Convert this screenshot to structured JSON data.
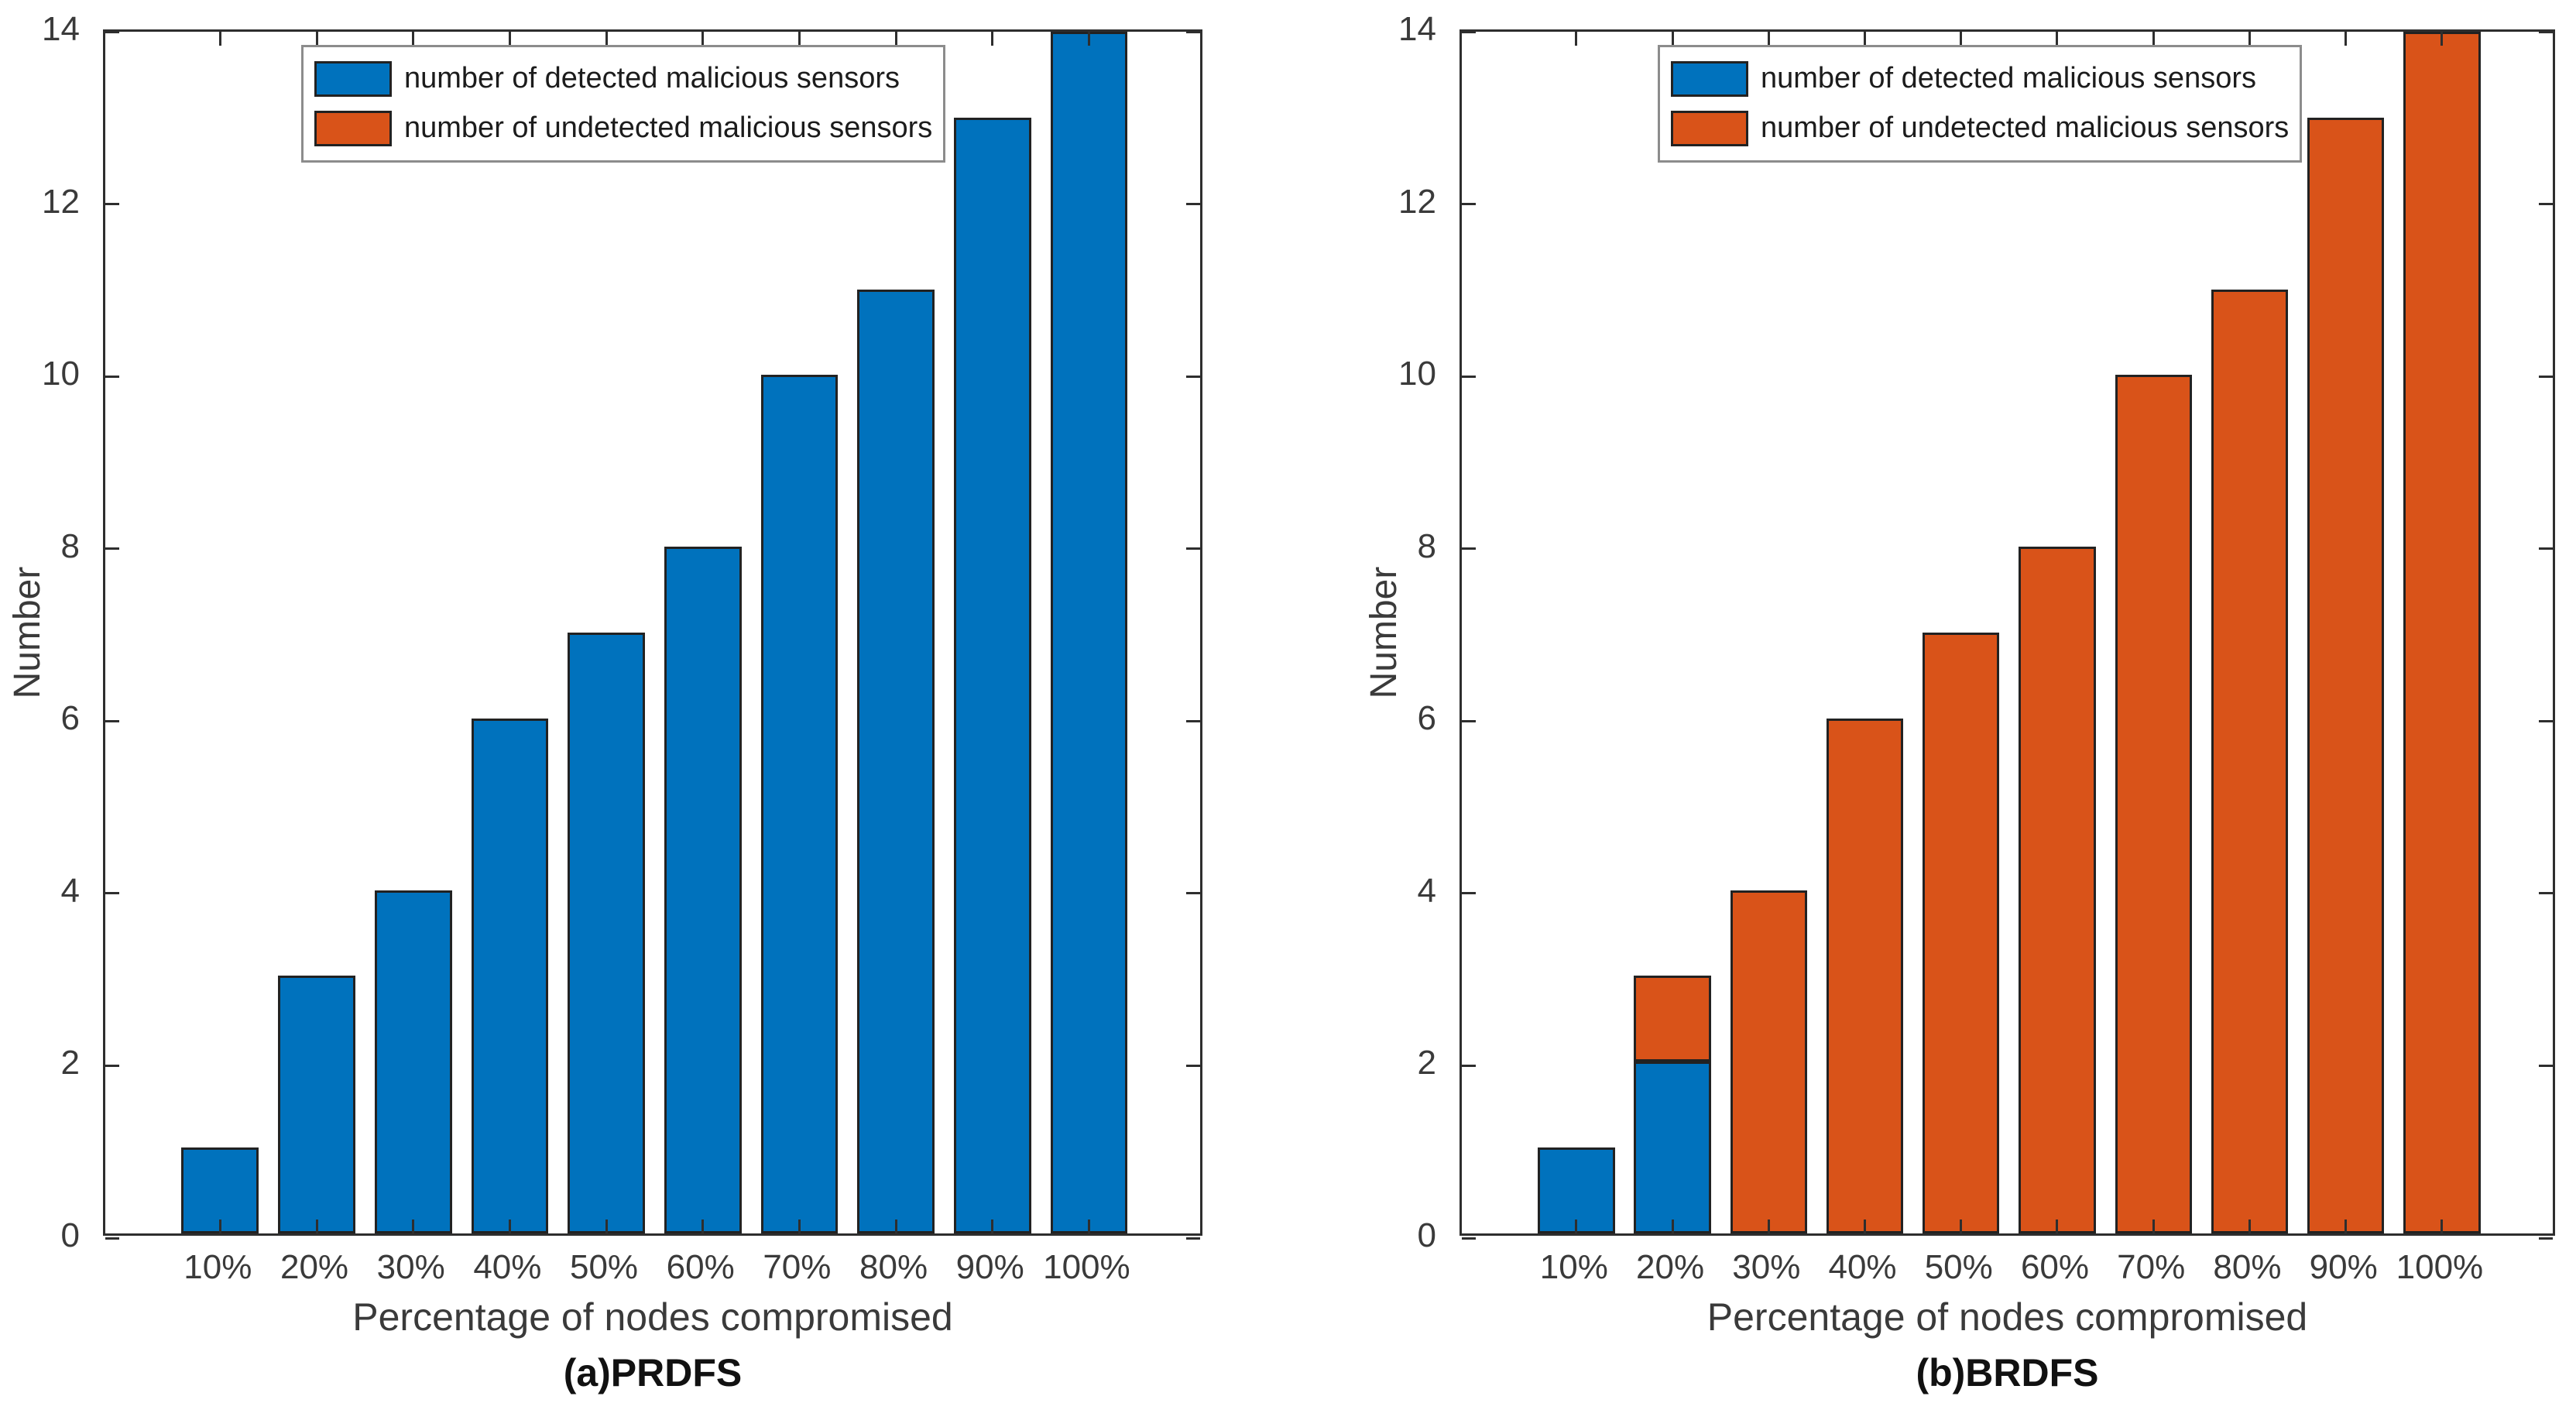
{
  "colors": {
    "detected_blue": "#0072BD",
    "undetected_orange": "#D95319",
    "bar_edge": "#222222",
    "axis": "#2e2e2e",
    "tick_label": "#3a3a3a",
    "legend_border": "#8c8c8c",
    "background": "#ffffff"
  },
  "chart_data": [
    {
      "type": "bar",
      "subtype": "stacked",
      "title": "(a)PRDFS",
      "xlabel": "Percentage of nodes compromised",
      "ylabel": "Number",
      "categories": [
        "10%",
        "20%",
        "30%",
        "40%",
        "50%",
        "60%",
        "70%",
        "80%",
        "90%",
        "100%"
      ],
      "series": [
        {
          "name": "number of detected malicious sensors",
          "color": "#0072BD",
          "values": [
            1,
            3,
            4,
            6,
            7,
            8,
            10,
            11,
            13,
            14
          ]
        },
        {
          "name": "number of undetected malicious sensors",
          "color": "#D95319",
          "values": [
            0,
            0,
            0,
            0,
            0,
            0,
            0,
            0,
            0,
            0
          ]
        }
      ],
      "ylim": [
        0,
        14
      ],
      "yticks": [
        0,
        2,
        4,
        6,
        8,
        10,
        12,
        14
      ],
      "grid": false,
      "legend_position": "top-left",
      "tick_direction": "in",
      "box": true
    },
    {
      "type": "bar",
      "subtype": "stacked",
      "title": "(b)BRDFS",
      "xlabel": "Percentage of nodes compromised",
      "ylabel": "Number",
      "categories": [
        "10%",
        "20%",
        "30%",
        "40%",
        "50%",
        "60%",
        "70%",
        "80%",
        "90%",
        "100%"
      ],
      "series": [
        {
          "name": "number of detected malicious sensors",
          "color": "#0072BD",
          "values": [
            1,
            2,
            0,
            0,
            0,
            0,
            0,
            0,
            0,
            0
          ]
        },
        {
          "name": "number of undetected malicious sensors",
          "color": "#D95319",
          "values": [
            0,
            1,
            4,
            6,
            7,
            8,
            10,
            11,
            13,
            14
          ]
        }
      ],
      "ylim": [
        0,
        14
      ],
      "yticks": [
        0,
        2,
        4,
        6,
        8,
        10,
        12,
        14
      ],
      "grid": false,
      "legend_position": "top-left",
      "tick_direction": "in",
      "box": true
    }
  ]
}
